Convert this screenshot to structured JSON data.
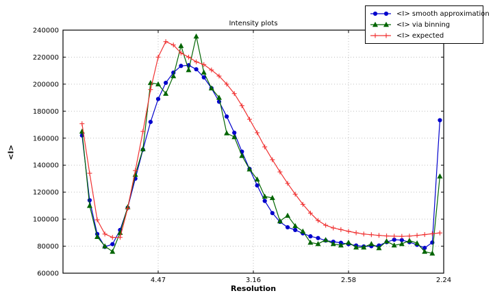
{
  "chart_data": {
    "type": "line",
    "title": "Intensity plots",
    "xlabel": "Resolution",
    "ylabel": "<I>",
    "grid": "dotted",
    "legend_position": "upper right",
    "x_axis": {
      "variable": "resolution (d, axis linear in 1/d^2)",
      "range": [
        0,
        0.2
      ],
      "ticks": [
        {
          "pos": 0.05,
          "label": "4.47"
        },
        {
          "pos": 0.1,
          "label": "3.16"
        },
        {
          "pos": 0.15,
          "label": "2.58"
        },
        {
          "pos": 0.2,
          "label": "2.24"
        }
      ]
    },
    "y_axis": {
      "range": [
        60000,
        240000
      ],
      "ticks": [
        60000,
        80000,
        100000,
        120000,
        140000,
        160000,
        180000,
        200000,
        220000,
        240000
      ]
    },
    "x": [
      0.01,
      0.014,
      0.018,
      0.022,
      0.026,
      0.03,
      0.034,
      0.038,
      0.042,
      0.046,
      0.05,
      0.054,
      0.058,
      0.062,
      0.066,
      0.07,
      0.074,
      0.078,
      0.082,
      0.086,
      0.09,
      0.094,
      0.098,
      0.102,
      0.106,
      0.11,
      0.114,
      0.118,
      0.122,
      0.126,
      0.13,
      0.134,
      0.138,
      0.142,
      0.146,
      0.15,
      0.154,
      0.158,
      0.162,
      0.166,
      0.17,
      0.174,
      0.178,
      0.182,
      0.186,
      0.19,
      0.194,
      0.198
    ],
    "series": [
      {
        "name": "<I> smooth approximation",
        "color": "#0000cc",
        "marker": "circle",
        "values": [
          162000,
          114000,
          89000,
          79500,
          81500,
          92000,
          108500,
          130000,
          151500,
          172000,
          189000,
          201000,
          208500,
          213500,
          214000,
          211000,
          205000,
          197000,
          187000,
          176000,
          164000,
          150000,
          137200,
          125000,
          113500,
          104500,
          98000,
          94000,
          92000,
          89500,
          87300,
          86000,
          84200,
          83300,
          82500,
          81500,
          80500,
          79800,
          80000,
          80500,
          83000,
          84800,
          84500,
          83000,
          81000,
          78700,
          82700,
          173300
        ]
      },
      {
        "name": "<I> via binning",
        "color": "#006400",
        "marker": "triangle",
        "values": [
          165000,
          110000,
          87000,
          80000,
          76000,
          90000,
          109000,
          133000,
          152000,
          201000,
          200000,
          193000,
          206000,
          228400,
          210500,
          235400,
          208700,
          197000,
          190000,
          163700,
          160900,
          147000,
          137000,
          129500,
          116800,
          115800,
          98600,
          102700,
          95000,
          91000,
          82700,
          81700,
          84700,
          81700,
          80700,
          82700,
          79200,
          79200,
          81700,
          78700,
          83700,
          80700,
          81700,
          84200,
          82200,
          76000,
          74700,
          131800
        ]
      },
      {
        "name": "<I> expected",
        "color": "#f03030",
        "marker": "plus",
        "values": [
          170700,
          134000,
          99500,
          89000,
          86500,
          86500,
          108000,
          136000,
          165000,
          196000,
          220000,
          231500,
          229000,
          223000,
          220000,
          216500,
          214500,
          210500,
          206000,
          200000,
          193000,
          184000,
          174000,
          164000,
          153500,
          144000,
          135000,
          126500,
          118500,
          111000,
          104500,
          99000,
          95500,
          93500,
          92300,
          91000,
          89900,
          89000,
          88500,
          88000,
          87600,
          87400,
          87300,
          87500,
          88000,
          88600,
          89200,
          89800
        ]
      }
    ]
  }
}
